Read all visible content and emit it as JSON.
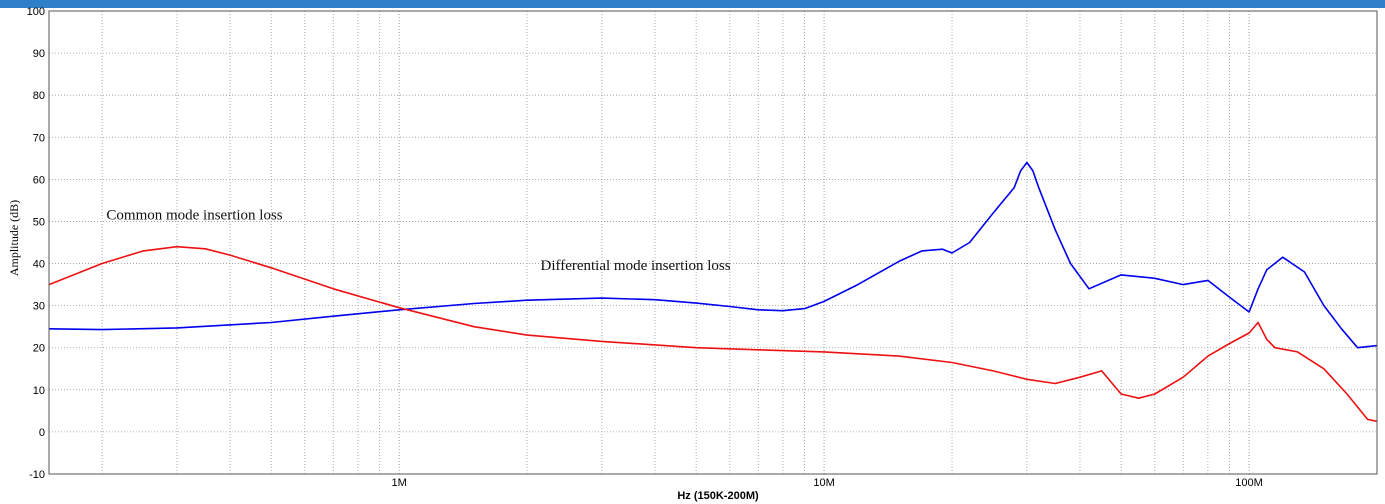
{
  "chart_data": {
    "type": "line",
    "title": "",
    "xlabel": "Hz  (150K-200M)",
    "ylabel": "Amplitude (dB)",
    "x_scale": "log",
    "xlim": [
      150000,
      200000000
    ],
    "ylim": [
      -10,
      100
    ],
    "grid": true,
    "y_ticks": [
      100,
      90,
      80,
      70,
      60,
      50,
      40,
      30,
      20,
      10,
      0,
      -10
    ],
    "x_tick_labels": [
      {
        "value": 1000000,
        "label": "1M"
      },
      {
        "value": 10000000,
        "label": "10M"
      },
      {
        "value": 100000000,
        "label": "100M"
      }
    ],
    "annotations": [
      {
        "text": "Common mode insertion loss",
        "x": 330000,
        "y": 50.5
      },
      {
        "text": "Differential mode insertion loss",
        "x": 3600000,
        "y": 38.5
      }
    ],
    "series": [
      {
        "color": "#0000ee",
        "x": [
          150000,
          200000,
          300000,
          500000,
          700000,
          1000000,
          1500000,
          2000000,
          3000000,
          4000000,
          5000000,
          6000000,
          7000000,
          8000000,
          9000000,
          10000000,
          12000000,
          15000000,
          17000000,
          19000000,
          20000000,
          22000000,
          25000000,
          28000000,
          29000000,
          30000000,
          31000000,
          32000000,
          35000000,
          38000000,
          42000000,
          50000000,
          60000000,
          70000000,
          80000000,
          90000000,
          100000000,
          105000000,
          110000000,
          120000000,
          135000000,
          150000000,
          165000000,
          180000000,
          200000000
        ],
        "y": [
          24.5,
          24.3,
          24.7,
          26.0,
          27.5,
          29.0,
          30.5,
          31.3,
          31.8,
          31.4,
          30.6,
          29.8,
          29.0,
          28.8,
          29.3,
          31.0,
          35.0,
          40.5,
          43.0,
          43.4,
          42.5,
          45.0,
          52.0,
          58.0,
          62.0,
          64.0,
          62.0,
          58.0,
          48.0,
          40.0,
          34.0,
          37.3,
          36.5,
          35.0,
          36.0,
          32.0,
          28.5,
          34.0,
          38.5,
          41.5,
          38.0,
          30.0,
          24.5,
          20.0,
          20.5
        ]
      },
      {
        "color": "#ee1111",
        "x": [
          150000,
          200000,
          250000,
          300000,
          350000,
          400000,
          500000,
          700000,
          1000000,
          1500000,
          2000000,
          3000000,
          5000000,
          7000000,
          10000000,
          15000000,
          20000000,
          25000000,
          30000000,
          35000000,
          40000000,
          45000000,
          50000000,
          55000000,
          60000000,
          70000000,
          80000000,
          90000000,
          100000000,
          105000000,
          110000000,
          115000000,
          130000000,
          150000000,
          170000000,
          190000000,
          200000000
        ],
        "y": [
          35.0,
          40.0,
          43.0,
          44.0,
          43.5,
          42.0,
          39.0,
          34.0,
          29.5,
          25.0,
          23.0,
          21.5,
          20.0,
          19.5,
          19.0,
          18.0,
          16.5,
          14.5,
          12.5,
          11.5,
          13.0,
          14.5,
          9.0,
          8.0,
          9.0,
          13.0,
          18.0,
          21.0,
          23.5,
          26.0,
          22.0,
          20.0,
          19.0,
          15.0,
          9.0,
          3.0,
          2.5
        ]
      }
    ]
  }
}
